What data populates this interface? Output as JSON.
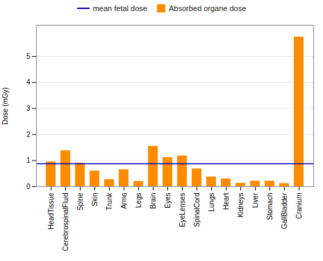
{
  "chart_data": {
    "type": "bar",
    "categories": [
      "HeadTissue",
      "CerebrospinalFluid",
      "Spine",
      "Skin",
      "Trunk",
      "Arms",
      "Legs",
      "Brain",
      "Eyes",
      "EyeLenses",
      "SpinalCord",
      "Lungs",
      "Heart",
      "Kidneys",
      "Liver",
      "Stomach",
      "GallBladder",
      "Cranium"
    ],
    "series": [
      {
        "name": "Absorbed organe dose",
        "type": "bar",
        "color": "#FF8C00",
        "values": [
          0.95,
          1.38,
          0.9,
          0.6,
          0.27,
          0.65,
          0.2,
          1.55,
          1.12,
          1.18,
          0.68,
          0.37,
          0.3,
          0.13,
          0.21,
          0.21,
          0.12,
          5.75
        ]
      }
    ],
    "reference_line": {
      "name": "mean fetal dose",
      "value": 0.875,
      "color": "#0000CC"
    },
    "ylabel": "Dose (mGy)",
    "ylim": [
      0,
      6.2
    ],
    "yticks": [
      0,
      1,
      2,
      3,
      4,
      5
    ],
    "grid": true,
    "legend": "upper center"
  }
}
